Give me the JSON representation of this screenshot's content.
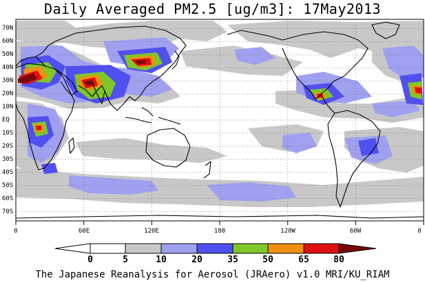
{
  "title": "Daily Averaged PM2.5 [ug/m3]: 17May2013",
  "credit": "The Japanese Reanalysis for Aerosol (JRAero) v1.0 MRI/KU_RIAM",
  "lat_labels": [
    "70N",
    "60N",
    "50N",
    "40N",
    "30N",
    "20N",
    "10N",
    "EQ",
    "10S",
    "20S",
    "30S",
    "40S",
    "50S",
    "60S",
    "70S"
  ],
  "lon_labels": [
    "0",
    "60E",
    "120E",
    "180",
    "120W",
    "60W",
    "0"
  ],
  "colorbar": {
    "levels": [
      "0",
      "5",
      "10",
      "20",
      "35",
      "50",
      "65",
      "80"
    ],
    "colors": [
      "#ffffff",
      "#c8c8c8",
      "#a0a0f0",
      "#5050f0",
      "#80c828",
      "#f09010",
      "#e01010",
      "#780808"
    ]
  },
  "map": {
    "region": "global",
    "lat_range": [
      -75,
      75
    ],
    "lon_range": [
      0,
      360
    ],
    "gridlines": "dotted, every 10 degrees latitude and 60 degrees longitude",
    "hotspots": [
      "Sahara / North Africa",
      "Arabian Peninsula",
      "Northwest China / Mongolia",
      "Northern India",
      "Central America / Mexico",
      "Central Africa"
    ]
  }
}
